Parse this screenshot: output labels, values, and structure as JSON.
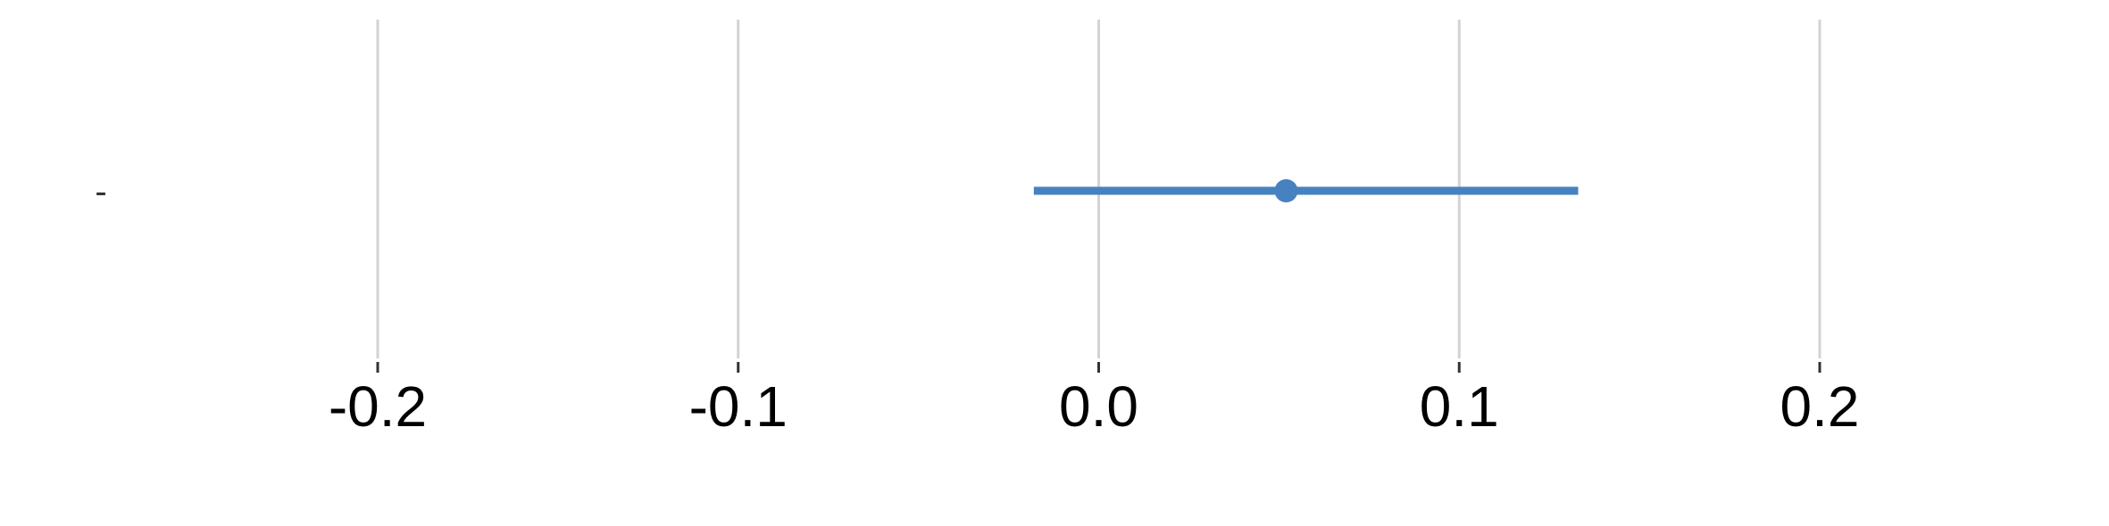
{
  "chart_data": {
    "type": "scatter",
    "title": "",
    "xlabel": "",
    "ylabel": "",
    "xlim": [
      -0.25,
      0.25
    ],
    "grid": true,
    "x_ticks": [
      {
        "value": -0.2,
        "label": "-0.2"
      },
      {
        "value": -0.1,
        "label": "-0.1"
      },
      {
        "value": 0.0,
        "label": "0.0"
      },
      {
        "value": 0.1,
        "label": "0.1"
      },
      {
        "value": 0.2,
        "label": "0.2"
      }
    ],
    "rows": [
      {
        "label": "-",
        "estimate": 0.052,
        "ci_low": -0.018,
        "ci_high": 0.133
      }
    ],
    "colors": {
      "point": "#4682c0",
      "grid": "#d3d3d3",
      "tick": "#333333"
    }
  }
}
